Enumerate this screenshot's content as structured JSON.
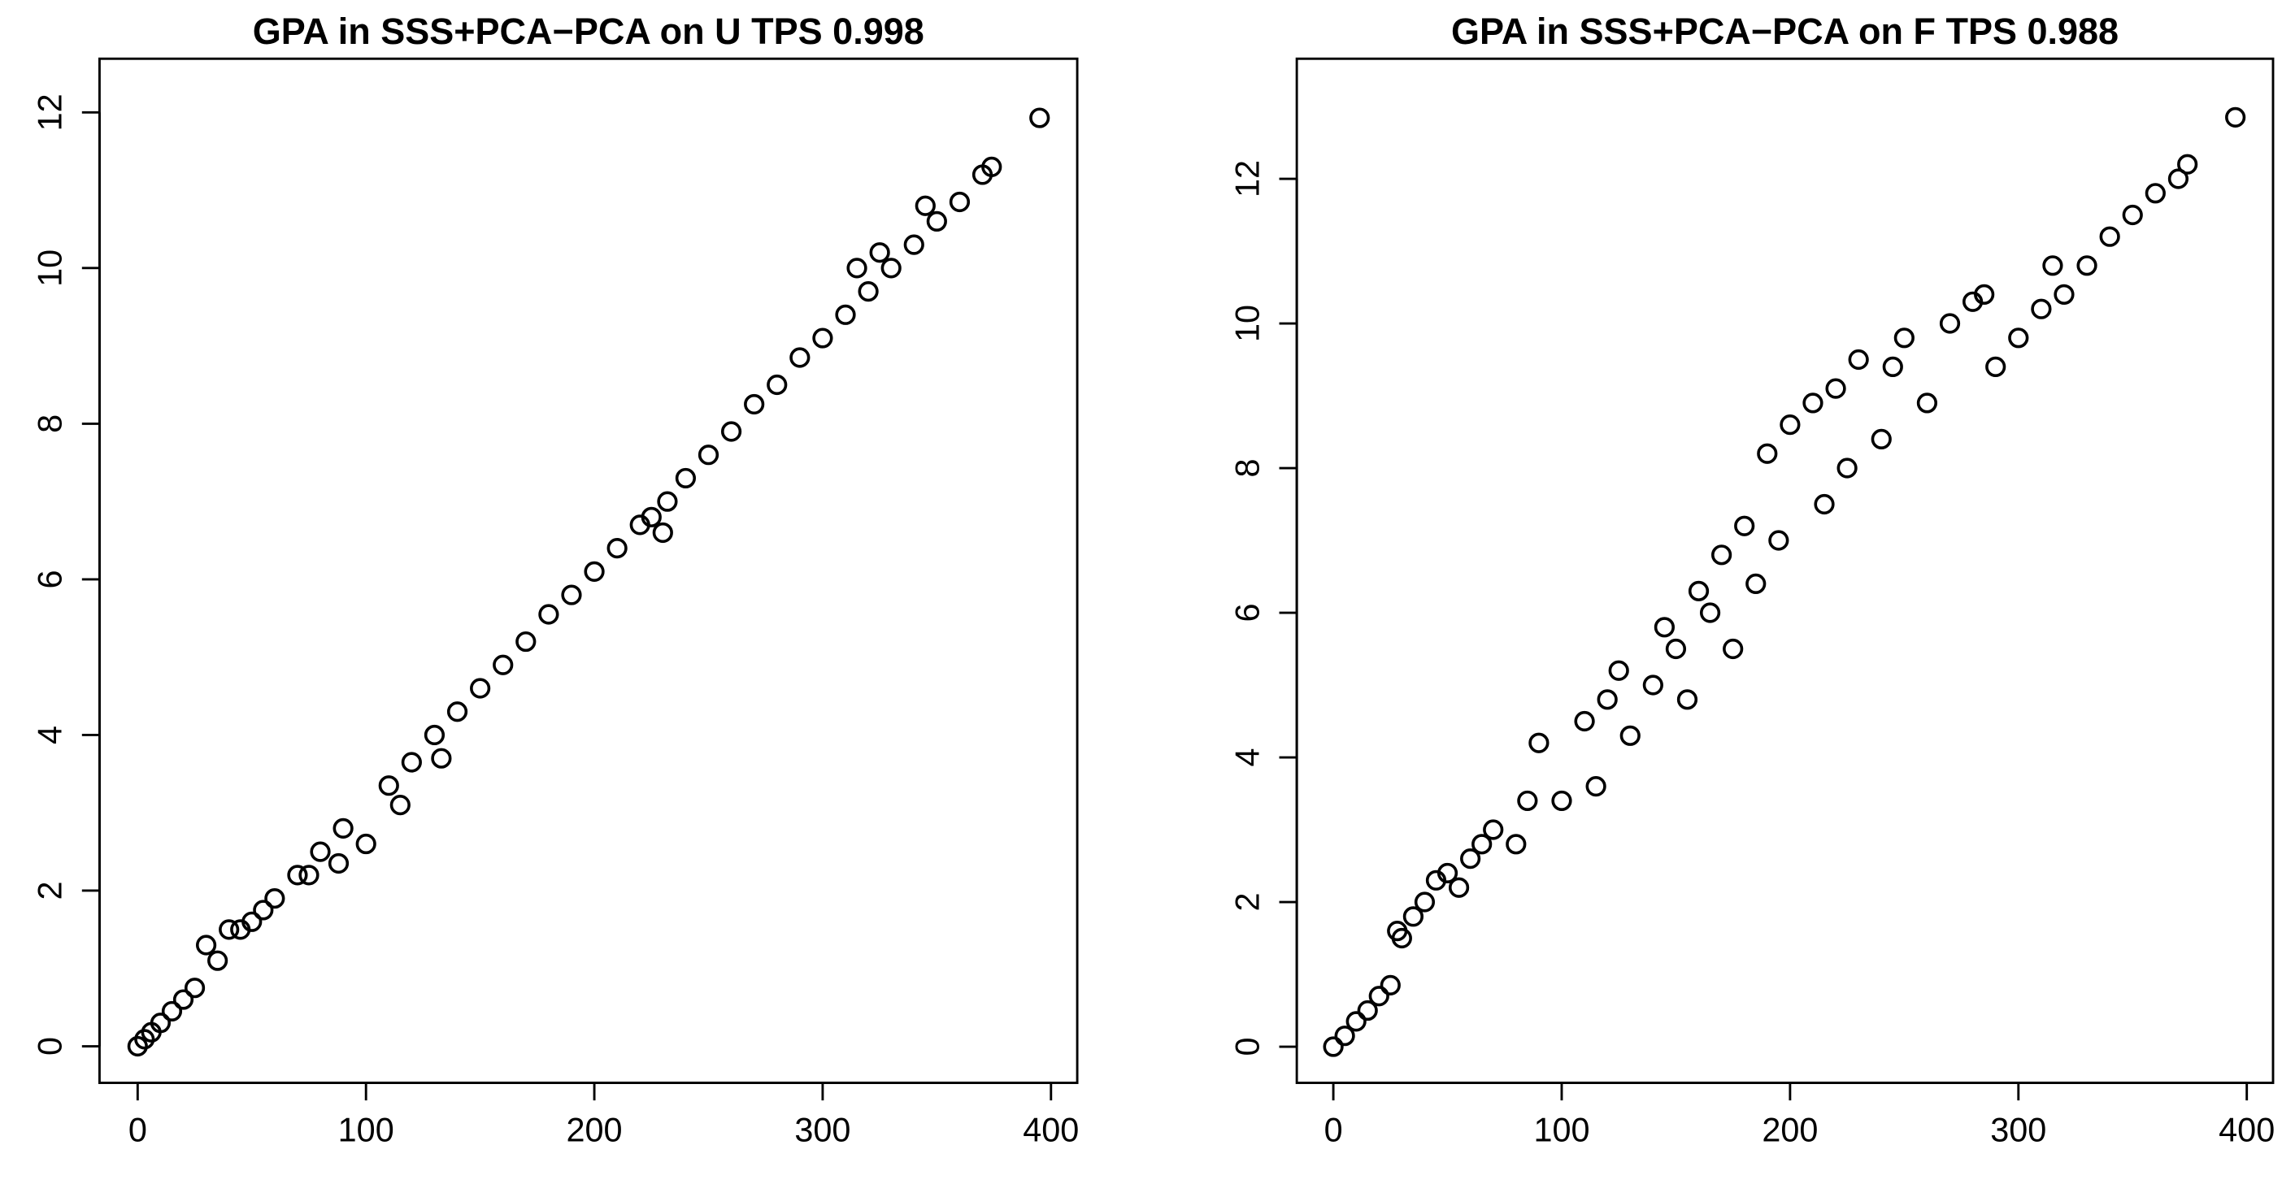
{
  "chart_data": [
    {
      "type": "scatter",
      "title": "GPA in SSS+PCA−PCA on U TPS 0.998",
      "color": "#000000",
      "x": [
        0,
        3,
        6,
        10,
        15,
        20,
        25,
        30,
        35,
        40,
        45,
        50,
        55,
        60,
        70,
        75,
        80,
        88,
        90,
        100,
        110,
        115,
        120,
        130,
        133,
        140,
        150,
        160,
        170,
        180,
        190,
        200,
        210,
        220,
        225,
        230,
        232,
        240,
        250,
        260,
        270,
        280,
        290,
        300,
        310,
        315,
        320,
        325,
        330,
        340,
        345,
        350,
        360,
        370,
        374,
        395
      ],
      "values": [
        0,
        0.09,
        0.18,
        0.3,
        0.45,
        0.6,
        0.75,
        1.3,
        1.1,
        1.5,
        1.5,
        1.6,
        1.75,
        1.9,
        2.2,
        2.2,
        2.5,
        2.35,
        2.8,
        2.6,
        3.35,
        3.1,
        3.65,
        4.0,
        3.7,
        4.3,
        4.6,
        4.9,
        5.2,
        5.55,
        5.8,
        6.1,
        6.4,
        6.7,
        6.8,
        6.6,
        7.0,
        7.3,
        7.6,
        7.9,
        8.25,
        8.5,
        8.85,
        9.1,
        9.4,
        10.0,
        9.7,
        10.2,
        10.0,
        10.3,
        10.8,
        10.6,
        10.85,
        11.2,
        11.3,
        11.93
      ],
      "xlim": [
        -16.7,
        411.5
      ],
      "ylim": [
        -0.47,
        12.69
      ],
      "xticks": [
        0,
        100,
        200,
        300,
        400
      ],
      "yticks": [
        0,
        2,
        4,
        6,
        8,
        10,
        12
      ]
    },
    {
      "type": "scatter",
      "title": "GPA in SSS+PCA−PCA on F TPS 0.988",
      "color": "#000000",
      "x": [
        0,
        5,
        10,
        15,
        20,
        25,
        28,
        30,
        35,
        40,
        45,
        50,
        55,
        60,
        65,
        70,
        80,
        85,
        90,
        100,
        110,
        115,
        120,
        125,
        130,
        140,
        145,
        150,
        155,
        160,
        165,
        170,
        175,
        180,
        185,
        190,
        195,
        200,
        210,
        215,
        220,
        225,
        230,
        240,
        245,
        250,
        260,
        270,
        280,
        285,
        290,
        300,
        310,
        315,
        320,
        330,
        340,
        350,
        360,
        370,
        374,
        395
      ],
      "values": [
        0,
        0.15,
        0.35,
        0.5,
        0.7,
        0.85,
        1.6,
        1.5,
        1.8,
        2.0,
        2.3,
        2.4,
        2.2,
        2.6,
        2.8,
        3.0,
        2.8,
        3.4,
        4.2,
        3.4,
        4.5,
        3.6,
        4.8,
        5.2,
        4.3,
        5.0,
        5.8,
        5.5,
        4.8,
        6.3,
        6.0,
        6.8,
        5.5,
        7.2,
        6.4,
        8.2,
        7.0,
        8.6,
        8.9,
        7.5,
        9.1,
        8.0,
        9.5,
        8.4,
        9.4,
        9.8,
        8.9,
        10.0,
        10.3,
        10.4,
        9.4,
        9.8,
        10.2,
        10.8,
        10.4,
        10.8,
        11.2,
        11.5,
        11.8,
        12.0,
        12.2,
        12.85
      ],
      "xlim": [
        -16,
        411.5
      ],
      "ylim": [
        -0.5,
        13.66
      ],
      "xticks": [
        0,
        100,
        200,
        300,
        400
      ],
      "yticks": [
        0,
        2,
        4,
        6,
        8,
        10,
        12
      ]
    }
  ]
}
